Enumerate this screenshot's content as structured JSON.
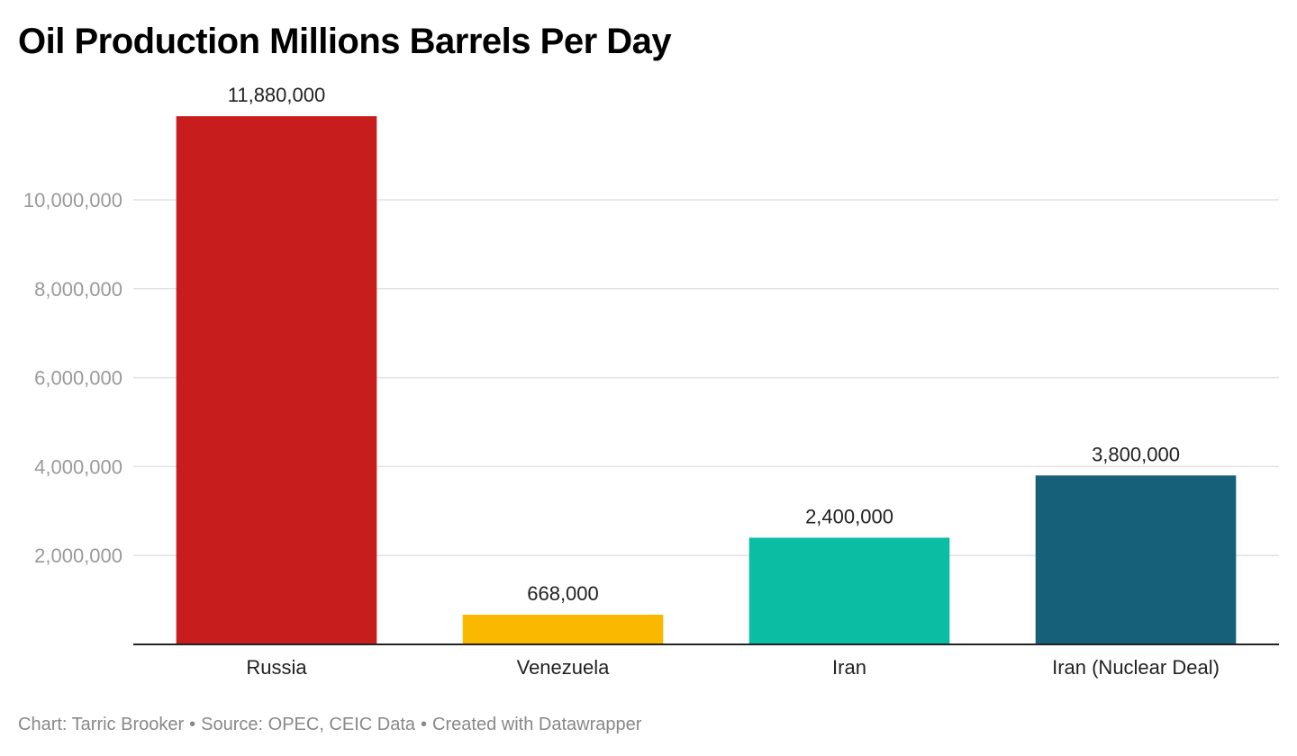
{
  "chart_data": {
    "type": "bar",
    "title": "Oil Production Millions Barrels Per Day",
    "categories": [
      "Russia",
      "Venezuela",
      "Iran",
      "Iran (Nuclear Deal)"
    ],
    "values": [
      11880000,
      668000,
      2400000,
      3800000
    ],
    "value_labels": [
      "11,880,000",
      "668,000",
      "2,400,000",
      "3,800,000"
    ],
    "bar_colors": [
      "#c71e1d",
      "#fbb800",
      "#0bbda2",
      "#17607a"
    ],
    "yticks": [
      2000000,
      4000000,
      6000000,
      8000000,
      10000000
    ],
    "ytick_labels": [
      "2,000,000",
      "4,000,000",
      "6,000,000",
      "8,000,000",
      "10,000,000"
    ],
    "ylim": [
      0,
      12000000
    ],
    "grid": true,
    "xlabel": "",
    "ylabel": ""
  },
  "footer": {
    "chart_credit": "Chart: Tarric Brooker",
    "source": "Source: OPEC, CEIC Data",
    "created_with": "Created with Datawrapper",
    "separator": "•"
  }
}
